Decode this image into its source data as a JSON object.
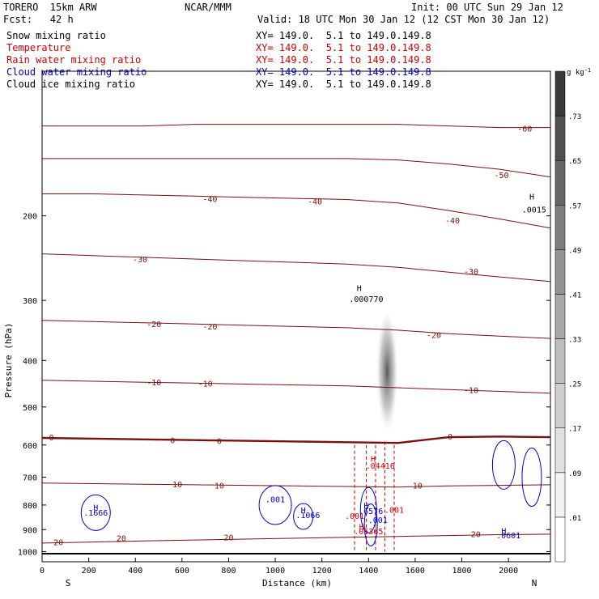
{
  "header": {
    "model": "TORERO  15km ARW",
    "center": "NCAR/MMM",
    "init": "Init: 00 UTC Sun 29 Jan 12",
    "fcst": "Fcst:   42 h",
    "valid": "Valid: 18 UTC Mon 30 Jan 12 (12 CST Mon 30 Jan 12)"
  },
  "fields": [
    {
      "name": "Snow mixing ratio",
      "xy": "XY= 149.0.  5.1 to 149.0.149.8",
      "color": "#000000"
    },
    {
      "name": "Temperature",
      "xy": "XY= 149.0.  5.1 to 149.0.149.8",
      "color": "#cc0000"
    },
    {
      "name": "Rain water mixing ratio",
      "xy": "XY= 149.0.  5.1 to 149.0.149.8",
      "color": "#cc0000"
    },
    {
      "name": "Cloud water mixing ratio",
      "xy": "XY= 149.0.  5.1 to 149.0.149.8",
      "color": "#0000cc"
    },
    {
      "name": "Cloud ice mixing ratio",
      "xy": "XY= 149.0.  5.1 to 149.0.149.8",
      "color": "#000000"
    }
  ],
  "chart_data": {
    "type": "cross-section",
    "xlabel": "Distance (km)",
    "ylabel": "Pressure (hPa)",
    "xlim": [
      0,
      2180
    ],
    "ylim": [
      1050,
      100
    ],
    "y_scale": "log",
    "x_ticks": [
      0,
      200,
      400,
      600,
      800,
      1000,
      1200,
      1400,
      1600,
      1800,
      2000
    ],
    "y_ticks": [
      200,
      300,
      400,
      500,
      600,
      700,
      800,
      900,
      1000
    ],
    "left_end": "S",
    "right_end": "N",
    "temperature_contours": {
      "color": "#7a1010",
      "levels": [
        {
          "value": "-60",
          "p": [
            130,
            130,
            130,
            129,
            129,
            129,
            129,
            129,
            130,
            131,
            131
          ]
        },
        {
          "value": "-50",
          "p": [
            152,
            152,
            152,
            152,
            152,
            152,
            152,
            153,
            156,
            160,
            166
          ]
        },
        {
          "value": "-40",
          "p": [
            180,
            180,
            181,
            182,
            183,
            184,
            185,
            188,
            195,
            203,
            212
          ]
        },
        {
          "value": "-30",
          "p": [
            240,
            242,
            244,
            246,
            248,
            250,
            252,
            256,
            262,
            268,
            274
          ]
        },
        {
          "value": "-20",
          "p": [
            330,
            332,
            334,
            336,
            338,
            340,
            342,
            346,
            352,
            356,
            360
          ]
        },
        {
          "value": "-10",
          "p": [
            440,
            442,
            444,
            446,
            448,
            450,
            452,
            456,
            460,
            464,
            468
          ]
        },
        {
          "value": "0",
          "p": [
            580,
            582,
            584,
            586,
            588,
            590,
            592,
            594,
            578,
            576,
            578
          ]
        },
        {
          "value": "10",
          "p": [
            720,
            722,
            724,
            726,
            728,
            730,
            732,
            734,
            730,
            728,
            726
          ]
        },
        {
          "value": "20",
          "p": [
            960,
            955,
            950,
            946,
            942,
            938,
            934,
            930,
            926,
            922,
            920
          ]
        }
      ],
      "label_positions": [
        {
          "text": "-60",
          "x": 2070,
          "p": 132
        },
        {
          "text": "-50",
          "x": 1970,
          "p": 165
        },
        {
          "text": "-40",
          "x": 720,
          "p": 185
        },
        {
          "text": "-40",
          "x": 1170,
          "p": 187
        },
        {
          "text": "-40",
          "x": 1760,
          "p": 205
        },
        {
          "text": "-30",
          "x": 420,
          "p": 247
        },
        {
          "text": "-30",
          "x": 1840,
          "p": 262
        },
        {
          "text": "-20",
          "x": 480,
          "p": 337
        },
        {
          "text": "-20",
          "x": 720,
          "p": 341
        },
        {
          "text": "-20",
          "x": 1680,
          "p": 355
        },
        {
          "text": "-10",
          "x": 480,
          "p": 445
        },
        {
          "text": "-10",
          "x": 700,
          "p": 448
        },
        {
          "text": "-10",
          "x": 1840,
          "p": 462
        },
        {
          "text": "0",
          "x": 40,
          "p": 580
        },
        {
          "text": "0",
          "x": 560,
          "p": 588
        },
        {
          "text": "0",
          "x": 760,
          "p": 590
        },
        {
          "text": "0",
          "x": 1750,
          "p": 578
        },
        {
          "text": "10",
          "x": 580,
          "p": 726
        },
        {
          "text": "10",
          "x": 760,
          "p": 730
        },
        {
          "text": "10",
          "x": 1610,
          "p": 730
        },
        {
          "text": "20",
          "x": 70,
          "p": 958
        },
        {
          "text": "20",
          "x": 340,
          "p": 940
        },
        {
          "text": "20",
          "x": 800,
          "p": 936
        },
        {
          "text": "20",
          "x": 1860,
          "p": 922
        }
      ]
    },
    "cloud_water_annotations": [
      {
        "text": "H",
        "x": 230,
        "p": 820
      },
      {
        "text": ".1666",
        "x": 230,
        "p": 842
      },
      {
        "text": ".001",
        "x": 1000,
        "p": 790
      },
      {
        "text": "H",
        "x": 1120,
        "p": 832
      },
      {
        "text": ".1066",
        "x": 1140,
        "p": 852
      },
      {
        "text": "H",
        "x": 1390,
        "p": 815
      },
      {
        "text": ".6576",
        "x": 1410,
        "p": 835
      },
      {
        "text": ".001",
        "x": 1440,
        "p": 872
      },
      {
        "text": "H",
        "x": 1980,
        "p": 918
      },
      {
        "text": ".0601",
        "x": 2000,
        "p": 938
      }
    ],
    "rain_water_annotations": [
      {
        "text": "H",
        "x": 1420,
        "p": 650
      },
      {
        "text": ".04416",
        "x": 1450,
        "p": 672
      },
      {
        "text": ".001",
        "x": 1510,
        "p": 830
      },
      {
        "text": ".001",
        "x": 1340,
        "p": 855
      },
      {
        "text": "H",
        "x": 1370,
        "p": 900
      },
      {
        "text": ".05365",
        "x": 1400,
        "p": 920
      }
    ],
    "cloud_ice_annotations": [
      {
        "text": "H",
        "x": 1360,
        "p": 287
      },
      {
        "text": ".000770",
        "x": 1390,
        "p": 302
      },
      {
        "text": "H",
        "x": 2100,
        "p": 185
      },
      {
        "text": ".0015",
        "x": 2110,
        "p": 197
      }
    ],
    "snow_plume": {
      "x_center": 1480,
      "p_top": 320,
      "p_bottom": 590,
      "peak": 0.7
    },
    "colorbar": {
      "unit": "g kg",
      "unit_exp": "-1",
      "levels": [
        ".01",
        ".09",
        ".17",
        ".25",
        ".33",
        ".41",
        ".49",
        ".57",
        ".65",
        ".73"
      ],
      "colors": [
        "#ffffff",
        "#f2f2f2",
        "#e0e0e0",
        "#cfcfcf",
        "#bdbdbd",
        "#a9a9a9",
        "#949494",
        "#7d7d7d",
        "#666666",
        "#505050",
        "#3a3a3a"
      ]
    }
  }
}
